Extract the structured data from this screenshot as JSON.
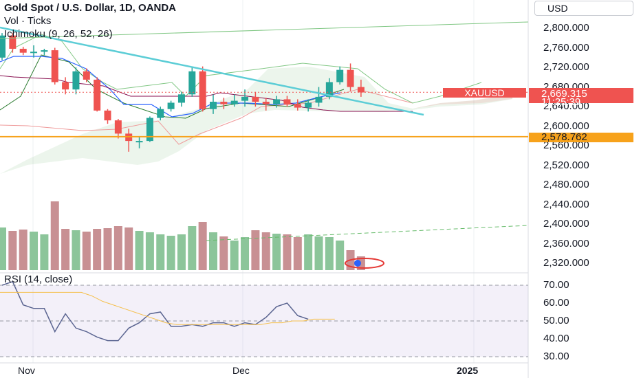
{
  "legend": {
    "title": "Gold Spot / U.S. Dollar, 1D, OANDA",
    "volume": "Vol · Ticks",
    "ichimoku": "Ichimoku (9, 26, 52, 26)"
  },
  "currency_button": "USD",
  "price_axis": [
    "2,800.000",
    "2,760.000",
    "2,720.000",
    "2,680.000",
    "2,640.000",
    "2,600.000",
    "2,560.000",
    "2,520.000",
    "2,480.000",
    "2,440.000",
    "2,400.000",
    "2,360.000",
    "2,320.000"
  ],
  "last_price": {
    "symbol": "XAUUSD",
    "price": "2,669.315",
    "countdown": "11:25:39"
  },
  "horizontal_line_price": "2,578.762",
  "rsi": {
    "title": "RSI (14, close)",
    "axis": [
      "70.00",
      "60.00",
      "50.00",
      "40.00",
      "30.00"
    ]
  },
  "time_axis": [
    "Nov",
    "Dec",
    "2025"
  ],
  "colors": {
    "up": "#26a69a",
    "down": "#ef5350",
    "trend": "#5ccdd6",
    "hline": "#f7a21b",
    "rsi_line": "#5b6591",
    "rsi_ma": "#f5c04d"
  },
  "chart_data": {
    "type": "candlestick",
    "candles": [
      [
        2740,
        2790,
        2735,
        2785
      ],
      [
        2785,
        2790,
        2750,
        2758
      ],
      [
        2758,
        2762,
        2745,
        2750
      ],
      [
        2750,
        2765,
        2740,
        2752
      ],
      [
        2752,
        2758,
        2745,
        2755
      ],
      [
        2755,
        2760,
        2685,
        2690
      ],
      [
        2690,
        2700,
        2665,
        2675
      ],
      [
        2675,
        2720,
        2665,
        2712
      ],
      [
        2712,
        2718,
        2690,
        2695
      ],
      [
        2695,
        2700,
        2630,
        2632
      ],
      [
        2632,
        2635,
        2605,
        2612
      ],
      [
        2612,
        2615,
        2575,
        2585
      ],
      [
        2585,
        2595,
        2548,
        2570
      ],
      [
        2570,
        2580,
        2555,
        2570
      ],
      [
        2570,
        2620,
        2568,
        2617
      ],
      [
        2617,
        2640,
        2612,
        2635
      ],
      [
        2635,
        2652,
        2630,
        2648
      ],
      [
        2648,
        2670,
        2640,
        2665
      ],
      [
        2665,
        2720,
        2660,
        2712
      ],
      [
        2712,
        2722,
        2630,
        2635
      ],
      [
        2635,
        2665,
        2625,
        2650
      ],
      [
        2650,
        2658,
        2635,
        2645
      ],
      [
        2645,
        2665,
        2640,
        2652
      ],
      [
        2652,
        2675,
        2640,
        2660
      ],
      [
        2660,
        2670,
        2640,
        2650
      ],
      [
        2650,
        2658,
        2632,
        2645
      ],
      [
        2645,
        2662,
        2638,
        2655
      ],
      [
        2655,
        2662,
        2640,
        2645
      ],
      [
        2645,
        2655,
        2632,
        2638
      ],
      [
        2638,
        2655,
        2630,
        2648
      ],
      [
        2648,
        2680,
        2640,
        2660
      ],
      [
        2660,
        2698,
        2655,
        2690
      ],
      [
        2690,
        2722,
        2685,
        2715
      ],
      [
        2715,
        2728,
        2672,
        2680
      ],
      [
        2680,
        2695,
        2660,
        2669
      ]
    ],
    "volumes": [
      62,
      57,
      59,
      56,
      52,
      100,
      60,
      58,
      56,
      60,
      61,
      64,
      62,
      57,
      55,
      52,
      50,
      52,
      64,
      70,
      55,
      49,
      43,
      48,
      58,
      55,
      53,
      52,
      48,
      52,
      49,
      48,
      43,
      29,
      20
    ],
    "rsi": [
      70,
      72,
      59,
      57,
      57,
      44,
      54,
      46,
      44,
      41,
      39,
      39,
      46,
      49,
      54,
      55,
      47,
      47,
      48,
      47,
      49,
      49,
      47,
      49,
      48,
      52,
      58,
      60,
      53,
      51
    ],
    "rsi_ma": [
      66,
      66,
      64,
      61,
      59,
      57,
      55,
      53,
      51,
      49,
      48,
      48,
      48,
      48,
      48,
      48,
      48,
      48,
      48,
      49,
      49,
      50,
      50,
      51,
      51,
      51
    ],
    "horizontal_line": 2578.762,
    "last_close": 2669.315,
    "ylim": [
      2300,
      2820
    ]
  }
}
